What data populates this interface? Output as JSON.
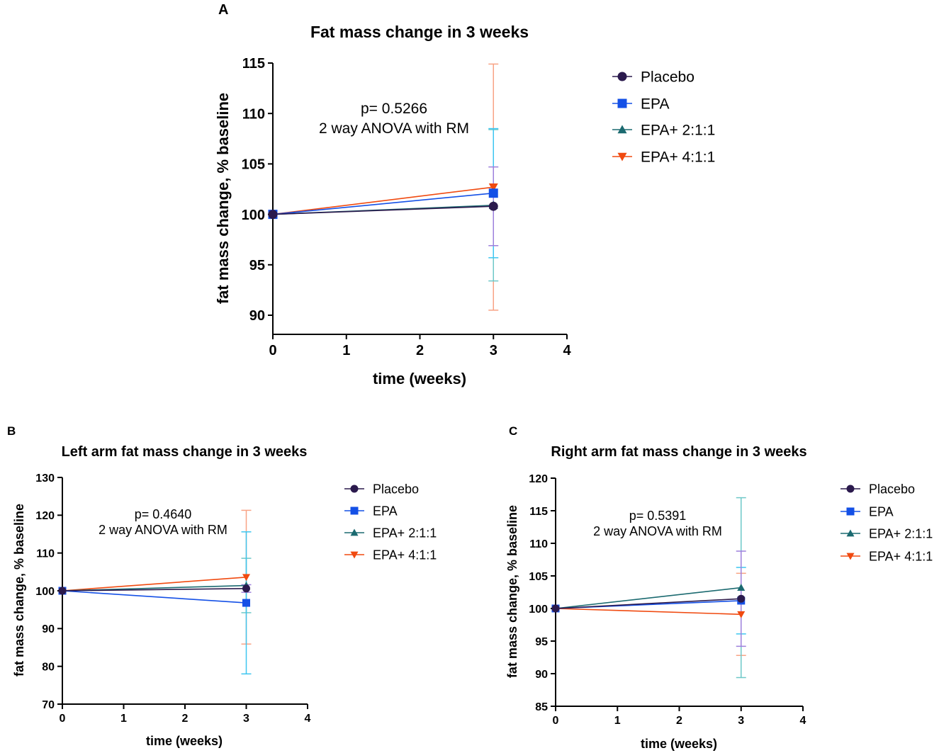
{
  "chart_data": [
    {
      "panel_label": "A",
      "type": "line",
      "title": "Fat mass change in 3 weeks",
      "xlabel": "time (weeks)",
      "ylabel": "fat mass change, % baseline",
      "xlim": [
        0,
        4
      ],
      "xticks": [
        "0",
        "1",
        "2",
        "3",
        "4"
      ],
      "ylim": [
        90,
        115
      ],
      "yticks": [
        "90",
        "95",
        "100",
        "105",
        "110",
        "115"
      ],
      "annotation": [
        "p= 0.5266",
        "2 way ANOVA with RM"
      ],
      "legend_placement": "right",
      "series": [
        {
          "name": "Placebo",
          "x": [
            0,
            3
          ],
          "y": [
            100,
            100.8
          ],
          "err": [
            0,
            3.9
          ]
        },
        {
          "name": "EPA",
          "x": [
            0,
            3
          ],
          "y": [
            100,
            102.1
          ],
          "err": [
            0,
            6.4
          ]
        },
        {
          "name": "EPA+ 2:1:1",
          "x": [
            0,
            3
          ],
          "y": [
            100,
            100.9
          ],
          "err": [
            0,
            7.5
          ]
        },
        {
          "name": "EPA+ 4:1:1",
          "x": [
            0,
            3
          ],
          "y": [
            100,
            102.7
          ],
          "err": [
            0,
            12.2
          ]
        }
      ]
    },
    {
      "panel_label": "B",
      "type": "line",
      "title": "Left arm fat mass change in 3 weeks",
      "xlabel": "time (weeks)",
      "ylabel": "fat mass change, % baseline",
      "xlim": [
        0,
        4
      ],
      "xticks": [
        "0",
        "1",
        "2",
        "3",
        "4"
      ],
      "ylim": [
        70,
        130
      ],
      "yticks": [
        "70",
        "80",
        "90",
        "100",
        "110",
        "120",
        "130"
      ],
      "annotation": [
        "p= 0.4640",
        "2 way ANOVA with RM"
      ],
      "legend_placement": "right",
      "series": [
        {
          "name": "Placebo",
          "x": [
            0,
            3
          ],
          "y": [
            100,
            100.6
          ],
          "err": [
            0,
            1.0
          ]
        },
        {
          "name": "EPA",
          "x": [
            0,
            3
          ],
          "y": [
            100,
            96.8
          ],
          "err": [
            0,
            18.8
          ]
        },
        {
          "name": "EPA+ 2:1:1",
          "x": [
            0,
            3
          ],
          "y": [
            100,
            101.4
          ],
          "err": [
            0,
            7.2
          ]
        },
        {
          "name": "EPA+ 4:1:1",
          "x": [
            0,
            3
          ],
          "y": [
            100,
            103.6
          ],
          "err": [
            0,
            17.7
          ]
        }
      ]
    },
    {
      "panel_label": "C",
      "type": "line",
      "title": "Right arm fat mass change in 3 weeks",
      "xlabel": "time (weeks)",
      "ylabel": "fat mass change, % baseline",
      "xlim": [
        0,
        4
      ],
      "xticks": [
        "0",
        "1",
        "2",
        "3",
        "4"
      ],
      "ylim": [
        85,
        120
      ],
      "yticks": [
        "85",
        "90",
        "95",
        "100",
        "105",
        "110",
        "115",
        "120"
      ],
      "annotation": [
        "p= 0.5391",
        "2 way ANOVA with RM"
      ],
      "legend_placement": "right",
      "series": [
        {
          "name": "Placebo",
          "x": [
            0,
            3
          ],
          "y": [
            100,
            101.5
          ],
          "err": [
            0,
            7.3
          ]
        },
        {
          "name": "EPA",
          "x": [
            0,
            3
          ],
          "y": [
            100,
            101.2
          ],
          "err": [
            0,
            5.1
          ]
        },
        {
          "name": "EPA+ 2:1:1",
          "x": [
            0,
            3
          ],
          "y": [
            100,
            103.2
          ],
          "err": [
            0,
            13.8
          ]
        },
        {
          "name": "EPA+ 4:1:1",
          "x": [
            0,
            3
          ],
          "y": [
            100,
            99.1
          ],
          "err": [
            0,
            6.3
          ]
        }
      ]
    }
  ],
  "styles": [
    {
      "marker": "circle",
      "color": "#2b1a4d",
      "err_color": "#9d80dc"
    },
    {
      "marker": "square",
      "color": "#1450e6",
      "err_color": "#3ec6f0"
    },
    {
      "marker": "triangle-up",
      "color": "#1b6a70",
      "err_color": "#6ec8c8"
    },
    {
      "marker": "triangle-down",
      "color": "#f04a10",
      "err_color": "#f8a385"
    }
  ]
}
